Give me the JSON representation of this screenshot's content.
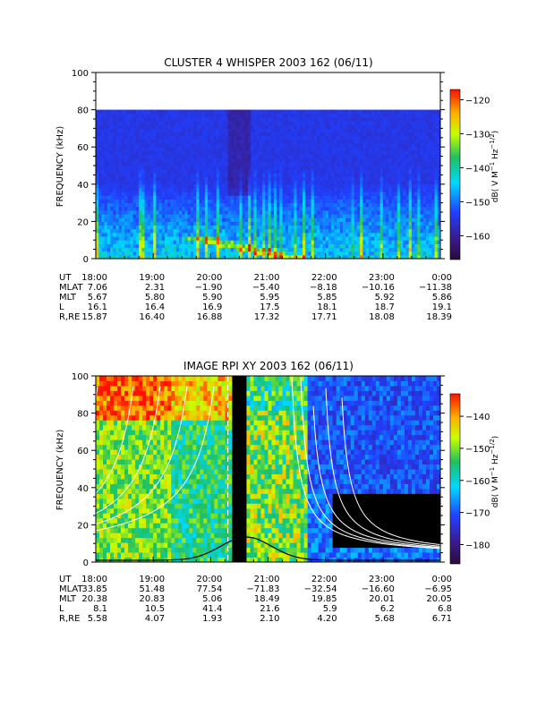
{
  "chart_data": [
    {
      "type": "heatmap",
      "title": "CLUSTER 4 WHISPER 2003 162 (06/11)",
      "ylabel": "FREQUENCY (kHz)",
      "ylim": [
        0,
        100
      ],
      "y_ticks": [
        "0",
        "20",
        "40",
        "60",
        "80",
        "100"
      ],
      "xlim": [
        "18:00",
        "0:00"
      ],
      "data_top": 80,
      "colorbar": {
        "label": "dB( V M⁻¹ Hz⁻¹ᐟ²)",
        "label_parts": [
          "dB( V M",
          "−1",
          " Hz",
          "−1/2",
          ")"
        ],
        "range": [
          -167,
          -117
        ],
        "ticks": [
          "−120",
          "−130",
          "−140",
          "−150",
          "−160"
        ],
        "tick_values": [
          -120,
          -130,
          -140,
          -150,
          -160
        ]
      },
      "ephemeris": {
        "row_labels": [
          "UT",
          "MLAT",
          "MLT",
          "L",
          "R,RE"
        ],
        "UT": [
          "18:00",
          "19:00",
          "20:00",
          "21:00",
          "22:00",
          "23:00",
          "0:00"
        ],
        "MLAT": [
          "7.06",
          "2.31",
          "−1.90",
          "−5.40",
          "−8.18",
          "−10.16",
          "−11.38"
        ],
        "MLT": [
          "5.67",
          "5.80",
          "5.90",
          "5.95",
          "5.85",
          "5.92",
          "5.86"
        ],
        "L": [
          "16.1",
          "16.4",
          "16.9",
          "17.5",
          "18.1",
          "18.7",
          "19.1"
        ],
        "R,RE": [
          "15.87",
          "16.40",
          "16.88",
          "17.32",
          "17.71",
          "18.08",
          "18.39"
        ]
      }
    },
    {
      "type": "heatmap",
      "title": "IMAGE RPI XY 2003 162 (06/11)",
      "ylabel": "FREQUENCY (kHz)",
      "ylim": [
        0,
        100
      ],
      "y_ticks": [
        "0",
        "20",
        "40",
        "60",
        "80",
        "100"
      ],
      "xlim": [
        "18:00",
        "0:00"
      ],
      "data_gap_ut": [
        20.4,
        20.65
      ],
      "dashed_marker_ut": 20.3,
      "colorbar": {
        "label": "dB( V M⁻¹ Hz⁻¹ᐟ²)",
        "label_parts": [
          "dB( V M",
          "−1",
          " Hz",
          "−1/2",
          ")"
        ],
        "range": [
          -186,
          -133
        ],
        "ticks": [
          "−140",
          "−150",
          "−160",
          "−170",
          "−180"
        ],
        "tick_values": [
          -140,
          -150,
          -160,
          -170,
          -180
        ]
      },
      "ephemeris": {
        "row_labels": [
          "UT",
          "MLAT",
          "MLT",
          "L",
          "R,RE"
        ],
        "UT": [
          "18:00",
          "19:00",
          "20:00",
          "21:00",
          "22:00",
          "23:00",
          "0:00"
        ],
        "MLAT": [
          "33.85",
          "51.48",
          "77.54",
          "−71.83",
          "−32.54",
          "−16.60",
          "−6.95"
        ],
        "MLT": [
          "20.38",
          "20.83",
          "5.06",
          "18.49",
          "19.85",
          "20.01",
          "20.05"
        ],
        "L": [
          "8.1",
          "10.5",
          "41.4",
          "21.6",
          "5.9",
          "6.2",
          "6.8"
        ],
        "R,RE": [
          "5.58",
          "4.07",
          "1.93",
          "2.10",
          "4.20",
          "5.68",
          "6.71"
        ]
      }
    }
  ]
}
